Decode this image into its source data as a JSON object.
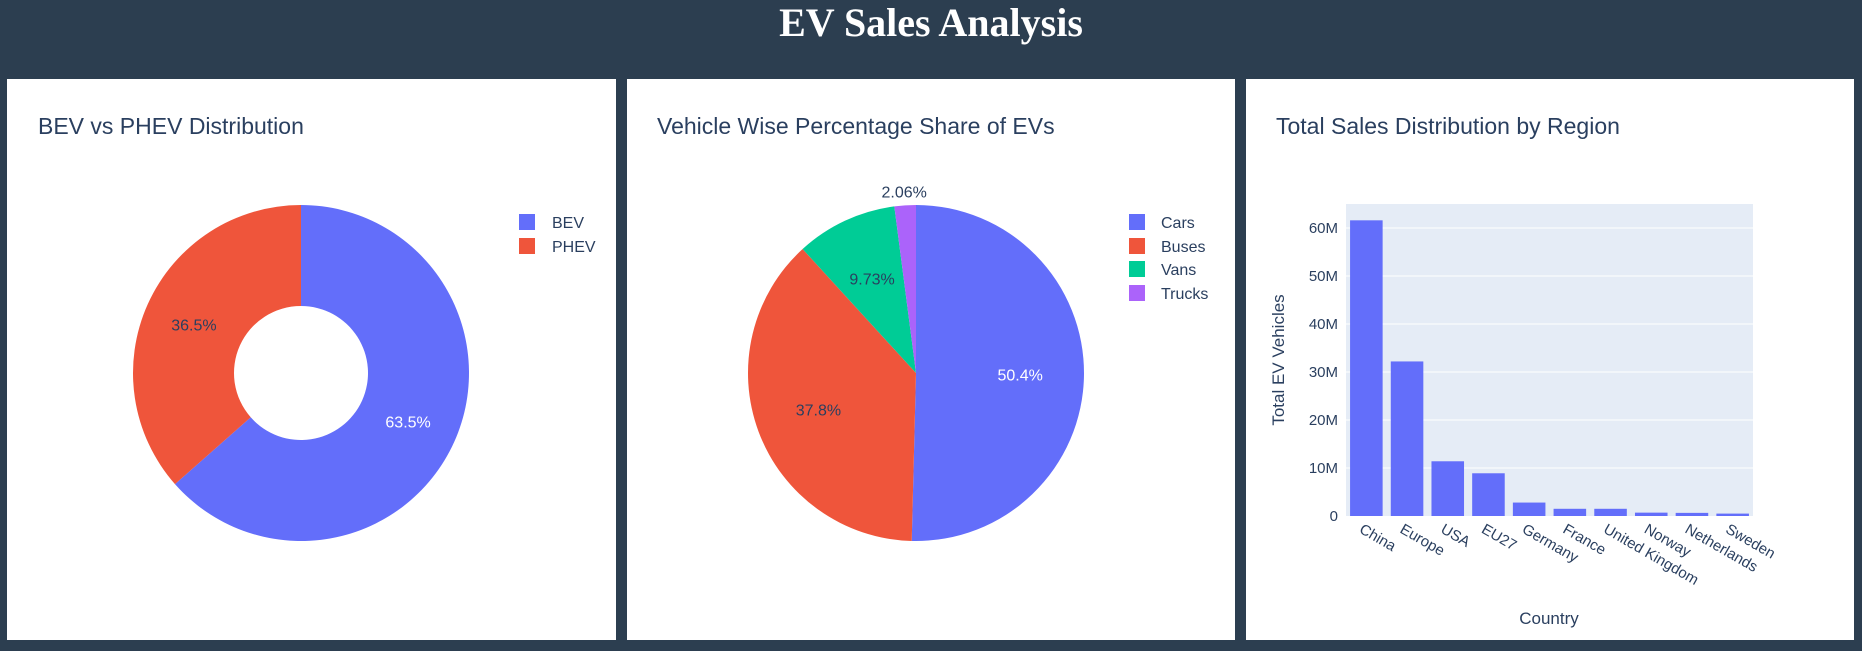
{
  "dashboard": {
    "title": "EV Sales Analysis"
  },
  "colors": {
    "background": "#2c3e50",
    "panel": "#ffffff",
    "text": "#2a3f5f",
    "plot_bg": "#e5ecf6",
    "bar": "#636efa"
  },
  "chart_data": [
    {
      "type": "pie",
      "hole": true,
      "title": "BEV vs PHEV Distribution",
      "categories": [
        "BEV",
        "PHEV"
      ],
      "values": [
        63.5,
        36.5
      ],
      "labels": [
        "63.5%",
        "36.5%"
      ],
      "colors": [
        "#636efa",
        "#ef553b"
      ],
      "legend_position": "top-right"
    },
    {
      "type": "pie",
      "hole": false,
      "title": "Vehicle Wise Percentage Share of EVs",
      "categories": [
        "Cars",
        "Buses",
        "Vans",
        "Trucks"
      ],
      "values": [
        50.4,
        37.8,
        9.73,
        2.06
      ],
      "labels": [
        "50.4%",
        "37.8%",
        "9.73%",
        "2.06%"
      ],
      "colors": [
        "#636efa",
        "#ef553b",
        "#00cc96",
        "#ab63fa"
      ],
      "legend_position": "top-right"
    },
    {
      "type": "bar",
      "title": "Total Sales Distribution by Region",
      "xlabel": "Country",
      "ylabel": "Total EV Vehicles",
      "categories": [
        "China",
        "Europe",
        "USA",
        "EU27",
        "Germany",
        "France",
        "United Kingdom",
        "Norway",
        "Netherlands",
        "Sweden"
      ],
      "values": [
        61600000,
        32200000,
        11400000,
        8900000,
        2800000,
        1500000,
        1500000,
        700000,
        650000,
        500000
      ],
      "ylim": [
        0,
        65000000
      ],
      "yticks": [
        0,
        10000000,
        20000000,
        30000000,
        40000000,
        50000000,
        60000000
      ],
      "ytick_labels": [
        "0",
        "10M",
        "20M",
        "30M",
        "40M",
        "50M",
        "60M"
      ],
      "grid": true
    }
  ]
}
